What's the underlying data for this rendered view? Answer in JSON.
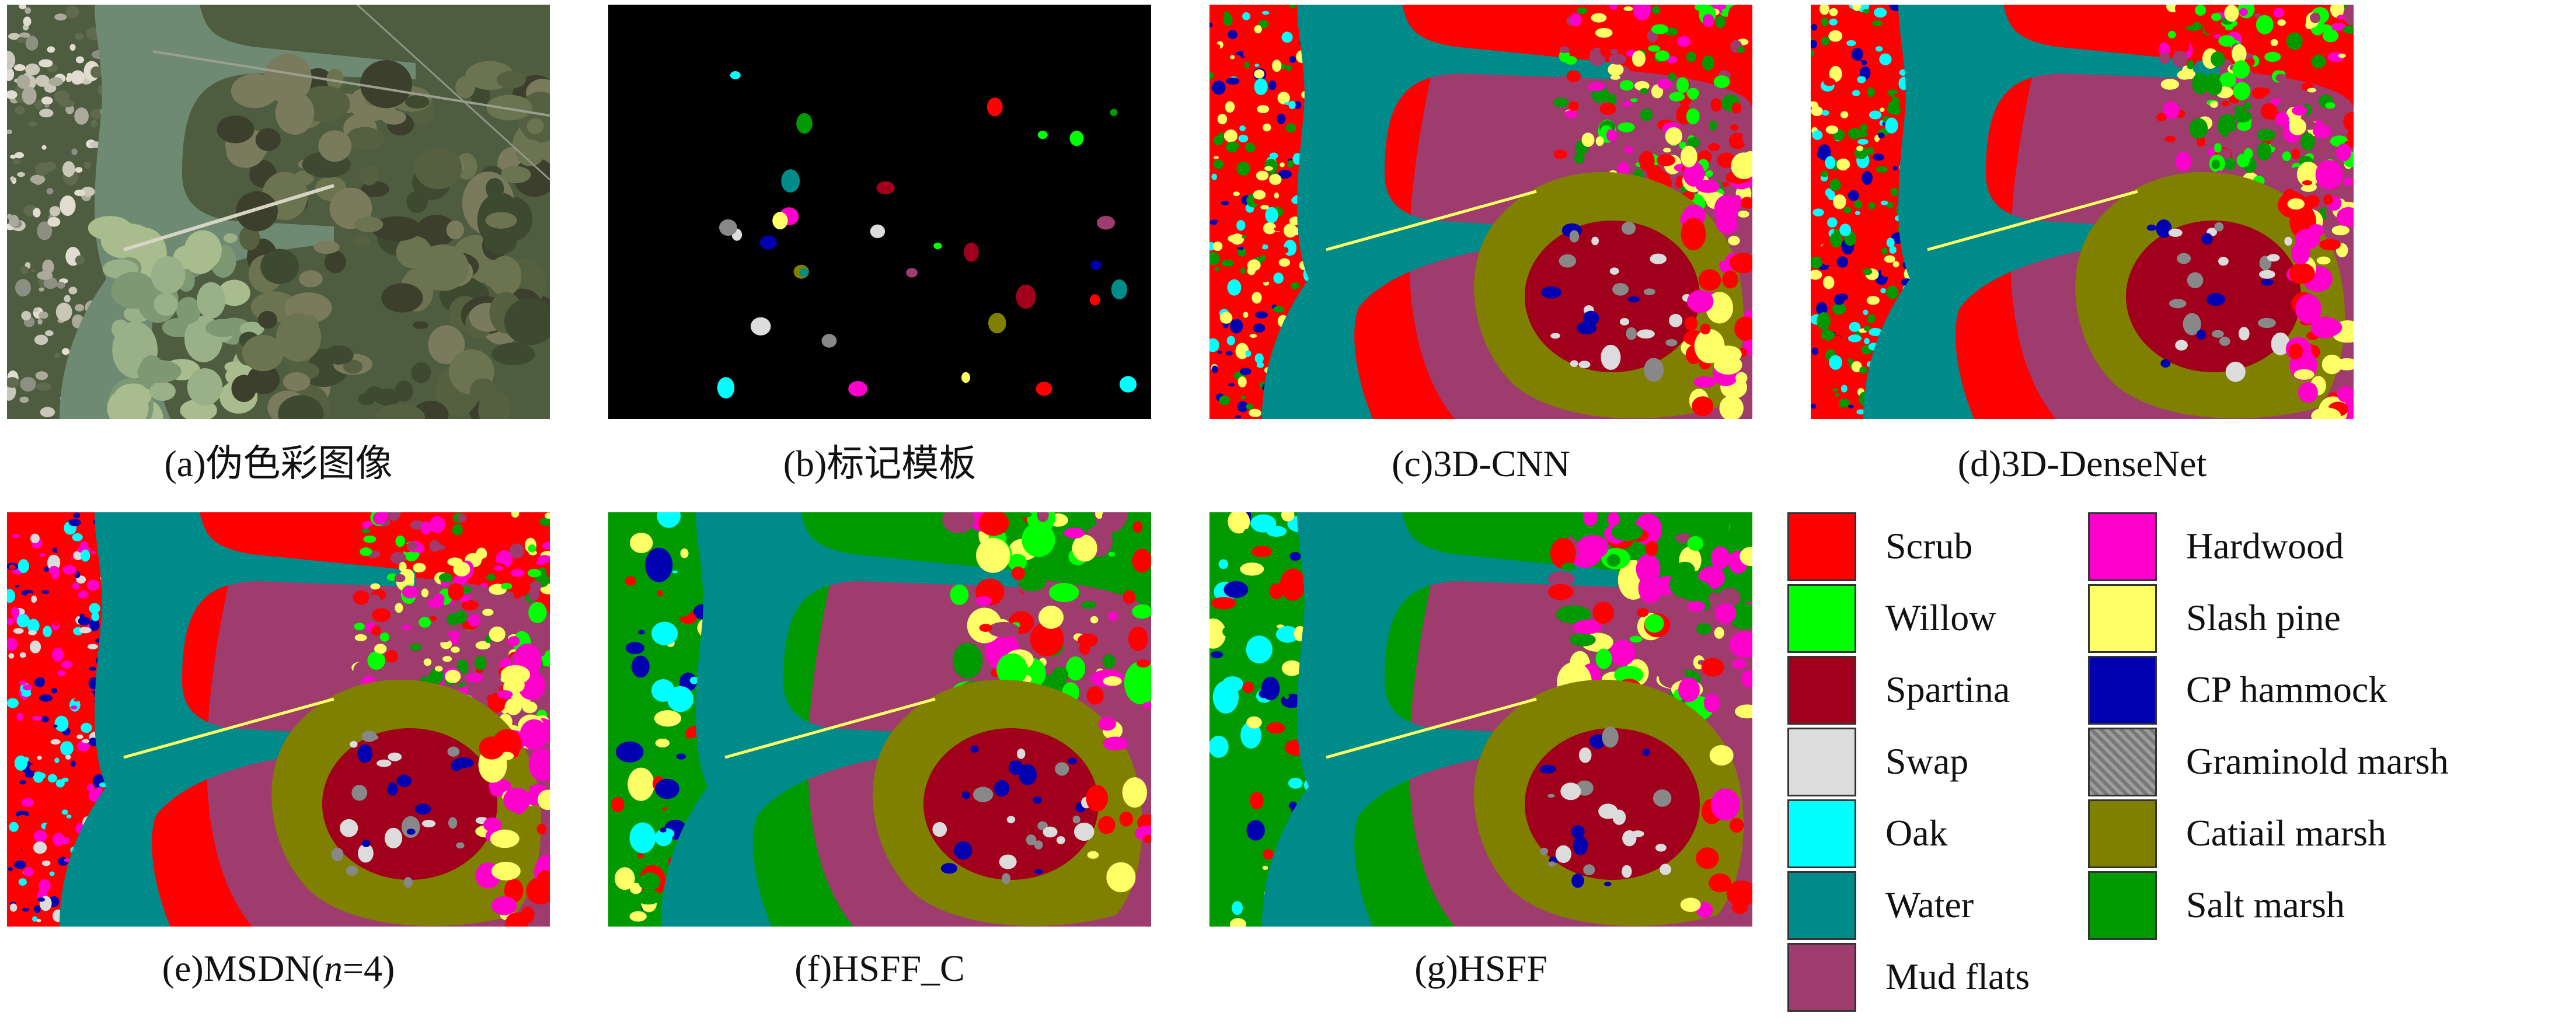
{
  "panels": [
    {
      "id": "a",
      "caption": "(a)伪色彩图像",
      "mode": "rgb"
    },
    {
      "id": "b",
      "caption": "(b)标记模板",
      "mode": "mask"
    },
    {
      "id": "c",
      "caption": "(c)3D-CNN",
      "mode": "map",
      "noise": "high"
    },
    {
      "id": "d",
      "caption": "(d)3D-DenseNet",
      "mode": "map",
      "noise": "high",
      "land": "#ff0000"
    },
    {
      "id": "e",
      "caption_prefix": "(e)MSDN(",
      "caption_var": "n",
      "caption_suffix": "=4)",
      "mode": "map",
      "noise": "speckle"
    },
    {
      "id": "f",
      "caption": "(f)HSFF_C",
      "mode": "map",
      "noise": "low",
      "land": "#009a00"
    },
    {
      "id": "g",
      "caption": "(g)HSFF",
      "mode": "map",
      "noise": "low",
      "land": "#009a00"
    }
  ],
  "legend": [
    {
      "label": "Scrub",
      "color": "#ff0000"
    },
    {
      "label": "Willow",
      "color": "#00ff00"
    },
    {
      "label": "Spartina",
      "color": "#a0001c"
    },
    {
      "label": "Swap",
      "color": "#dcdcdc"
    },
    {
      "label": "Oak",
      "color": "#00ffff"
    },
    {
      "label": "Water",
      "color": "#008b8b"
    },
    {
      "label": "Mud flats",
      "color": "#9e3c6e"
    },
    {
      "label": "Hardwood",
      "color": "#ff00cc"
    },
    {
      "label": "Slash pine",
      "color": "#ffff66"
    },
    {
      "label": "CP hammock",
      "color": "#0000b0"
    },
    {
      "label": "Graminold marsh",
      "color": "#888888"
    },
    {
      "label": "Catiail marsh",
      "color": "#808000"
    },
    {
      "label": "Salt marsh",
      "color": "#009a00"
    }
  ]
}
